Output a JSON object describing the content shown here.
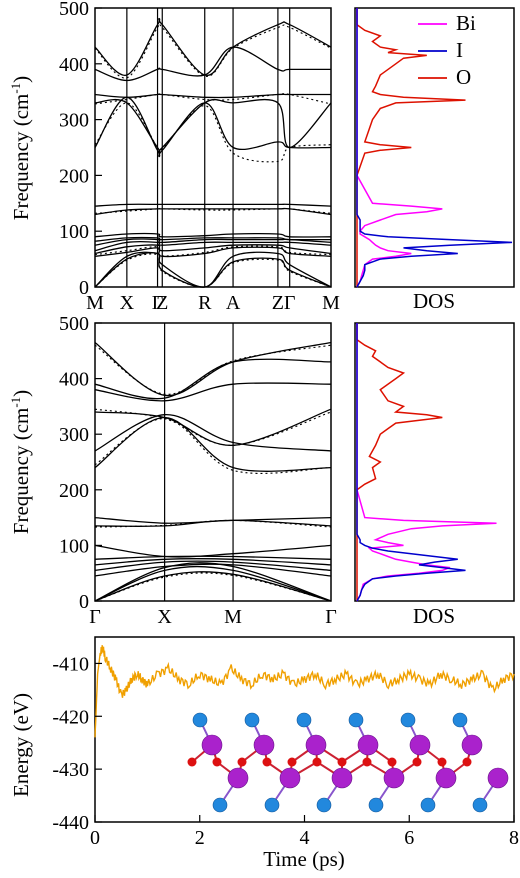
{
  "chart_data": [
    {
      "type": "line",
      "panel": "phonon-dispersion-top",
      "ylabel": "Frequency (cm",
      "ylabel_sup": "-1",
      "ylabel_close": ")",
      "ylim": [
        0,
        500
      ],
      "yticks": [
        "0",
        "100",
        "200",
        "300",
        "400",
        "500"
      ],
      "ytick_values": [
        0,
        100,
        200,
        300,
        400,
        500
      ],
      "path_points": [
        "M",
        "X",
        "Γ",
        "Z",
        "R",
        "A",
        "Z",
        "Γ",
        "M"
      ],
      "x_tick_labels": [
        "M",
        "X",
        "Γ",
        "Z",
        "R",
        "A",
        "Z",
        "Γ",
        "M"
      ],
      "branches": [
        [
          0,
          50,
          60,
          30,
          0,
          45,
          50,
          30,
          0
        ],
        [
          0,
          55,
          60,
          40,
          0,
          55,
          60,
          40,
          0
        ],
        [
          55,
          62,
          70,
          55,
          60,
          70,
          70,
          60,
          55
        ],
        [
          60,
          72,
          75,
          65,
          70,
          75,
          75,
          70,
          60
        ],
        [
          65,
          80,
          80,
          75,
          80,
          80,
          80,
          80,
          75
        ],
        [
          75,
          85,
          85,
          80,
          85,
          85,
          85,
          85,
          80
        ],
        [
          82,
          88,
          88,
          85,
          88,
          88,
          88,
          85,
          85
        ],
        [
          90,
          95,
          95,
          90,
          92,
          95,
          95,
          90,
          90
        ],
        [
          130,
          138,
          140,
          140,
          140,
          140,
          140,
          140,
          130
        ],
        [
          145,
          148,
          148,
          148,
          148,
          148,
          148,
          148,
          145
        ],
        [
          250,
          340,
          245,
          245,
          330,
          250,
          260,
          250,
          250
        ],
        [
          330,
          330,
          250,
          250,
          330,
          330,
          330,
          250,
          330
        ],
        [
          345,
          340,
          345,
          345,
          340,
          340,
          345,
          345,
          345
        ],
        [
          390,
          370,
          390,
          390,
          380,
          430,
          390,
          390,
          390
        ],
        [
          430,
          380,
          470,
          470,
          380,
          430,
          470,
          470,
          430
        ]
      ],
      "branch_dft": [
        [
          0,
          48,
          58,
          28,
          0,
          43,
          48,
          28,
          0
        ],
        [
          58,
          65,
          72,
          56,
          62,
          72,
          72,
          62,
          58
        ],
        [
          132,
          136,
          140,
          140,
          138,
          138,
          140,
          140,
          132
        ],
        [
          255,
          330,
          250,
          248,
          325,
          240,
          225,
          250,
          255
        ],
        [
          328,
          336,
          345,
          345,
          336,
          336,
          345,
          345,
          328
        ],
        [
          428,
          375,
          465,
          465,
          378,
          428,
          465,
          465,
          428
        ]
      ]
    },
    {
      "type": "line",
      "panel": "dos-top",
      "xlabel": "DOS",
      "legend": [
        "Bi",
        "I",
        "O"
      ],
      "colors": {
        "Bi": "#ff00ff",
        "I": "#0000cc",
        "O": "#dd1100"
      },
      "freq": [
        0,
        10,
        20,
        30,
        40,
        50,
        55,
        60,
        65,
        70,
        75,
        80,
        85,
        90,
        95,
        100,
        110,
        120,
        130,
        135,
        140,
        145,
        150,
        200,
        240,
        245,
        250,
        255,
        260,
        300,
        320,
        330,
        335,
        340,
        345,
        350,
        360,
        380,
        400,
        410,
        415,
        420,
        425,
        430,
        440,
        450,
        460,
        470,
        480,
        490,
        500
      ],
      "Bi": [
        0,
        0.02,
        0.03,
        0.04,
        0.05,
        0.1,
        0.25,
        0.35,
        0.2,
        0.15,
        0.12,
        0.1,
        0.08,
        0.05,
        0.02,
        0.02,
        0.05,
        0.15,
        0.25,
        0.45,
        0.55,
        0.35,
        0.1,
        0,
        0,
        0,
        0,
        0,
        0,
        0,
        0,
        0,
        0,
        0,
        0,
        0,
        0,
        0,
        0,
        0,
        0,
        0,
        0,
        0,
        0,
        0,
        0,
        0,
        0,
        0,
        0
      ],
      "I": [
        0,
        0.02,
        0.04,
        0.05,
        0.05,
        0.15,
        0.35,
        0.65,
        0.45,
        0.3,
        0.6,
        1.0,
        0.6,
        0.2,
        0.05,
        0.02,
        0.02,
        0.02,
        0,
        0,
        0,
        0,
        0,
        0,
        0,
        0,
        0,
        0,
        0,
        0,
        0,
        0,
        0,
        0,
        0,
        0,
        0,
        0,
        0,
        0,
        0,
        0,
        0,
        0,
        0,
        0,
        0,
        0,
        0,
        0,
        0
      ],
      "O": [
        0,
        0,
        0,
        0,
        0,
        0,
        0,
        0,
        0,
        0,
        0,
        0,
        0,
        0,
        0,
        0,
        0,
        0,
        0,
        0,
        0,
        0,
        0,
        0,
        0.05,
        0.15,
        0.35,
        0.15,
        0.05,
        0.1,
        0.15,
        0.25,
        0.7,
        0.3,
        0.15,
        0.1,
        0.12,
        0.15,
        0.25,
        0.3,
        0.45,
        0.2,
        0.25,
        0.15,
        0.1,
        0.15,
        0.05,
        0,
        0,
        0,
        0
      ]
    },
    {
      "type": "line",
      "panel": "phonon-dispersion-middle",
      "ylabel": "Frequency (cm",
      "ylabel_sup": "-1",
      "ylabel_close": ")",
      "ylim": [
        0,
        500
      ],
      "yticks": [
        "0",
        "100",
        "200",
        "300",
        "400",
        "500"
      ],
      "ytick_values": [
        0,
        100,
        200,
        300,
        400,
        500
      ],
      "path_points": [
        "Γ",
        "X",
        "M",
        "Γ"
      ],
      "x_tick_labels": [
        "Γ",
        "X",
        "M",
        "Γ"
      ],
      "branches": [
        [
          0,
          45,
          48,
          0
        ],
        [
          0,
          55,
          55,
          0
        ],
        [
          0,
          60,
          62,
          0
        ],
        [
          45,
          62,
          65,
          45
        ],
        [
          55,
          70,
          70,
          55
        ],
        [
          65,
          75,
          75,
          65
        ],
        [
          75,
          80,
          80,
          75
        ],
        [
          100,
          80,
          85,
          100
        ],
        [
          135,
          135,
          145,
          135
        ],
        [
          150,
          140,
          145,
          150
        ],
        [
          240,
          330,
          240,
          240
        ],
        [
          270,
          335,
          285,
          270
        ],
        [
          340,
          330,
          280,
          345
        ],
        [
          380,
          360,
          390,
          390
        ],
        [
          390,
          365,
          430,
          430
        ],
        [
          465,
          370,
          430,
          465
        ]
      ],
      "branch_dft": [
        [
          0,
          43,
          46,
          0
        ],
        [
          133,
          136,
          145,
          133
        ],
        [
          245,
          328,
          235,
          240
        ],
        [
          345,
          328,
          280,
          340
        ],
        [
          460,
          372,
          432,
          460
        ]
      ]
    },
    {
      "type": "line",
      "panel": "dos-middle",
      "xlabel": "DOS",
      "colors": {
        "Bi": "#ff00ff",
        "I": "#0000cc",
        "O": "#dd1100"
      },
      "freq": [
        0,
        10,
        20,
        30,
        40,
        45,
        50,
        55,
        60,
        65,
        70,
        75,
        80,
        85,
        90,
        95,
        100,
        105,
        110,
        120,
        130,
        135,
        140,
        145,
        150,
        200,
        210,
        220,
        240,
        250,
        260,
        280,
        300,
        310,
        320,
        330,
        335,
        340,
        350,
        360,
        380,
        400,
        410,
        420,
        430,
        440,
        450,
        460,
        470,
        480,
        500
      ],
      "Bi": [
        0,
        0.02,
        0.03,
        0.04,
        0.1,
        0.2,
        0.4,
        0.55,
        0.6,
        0.45,
        0.35,
        0.25,
        0.2,
        0.15,
        0.1,
        0.08,
        0.3,
        0.2,
        0.12,
        0.2,
        0.35,
        0.55,
        0.9,
        0.3,
        0.05,
        0,
        0,
        0,
        0,
        0,
        0,
        0,
        0,
        0,
        0,
        0,
        0,
        0,
        0,
        0,
        0,
        0,
        0,
        0,
        0,
        0,
        0,
        0,
        0,
        0,
        0
      ],
      "I": [
        0,
        0.02,
        0.03,
        0.05,
        0.1,
        0.25,
        0.45,
        0.7,
        0.55,
        0.4,
        0.5,
        0.65,
        0.5,
        0.35,
        0.2,
        0.1,
        0.05,
        0.02,
        0.02,
        0,
        0,
        0,
        0,
        0,
        0,
        0,
        0,
        0,
        0,
        0,
        0,
        0,
        0,
        0,
        0,
        0,
        0,
        0,
        0,
        0,
        0,
        0,
        0,
        0,
        0,
        0,
        0,
        0,
        0,
        0,
        0
      ],
      "O": [
        0,
        0,
        0,
        0,
        0,
        0,
        0,
        0,
        0,
        0,
        0,
        0,
        0,
        0,
        0,
        0,
        0,
        0,
        0,
        0,
        0,
        0,
        0,
        0,
        0,
        0,
        0.05,
        0.12,
        0.1,
        0.15,
        0.08,
        0.12,
        0.15,
        0.2,
        0.25,
        0.55,
        0.45,
        0.25,
        0.3,
        0.2,
        0.15,
        0.25,
        0.3,
        0.2,
        0.15,
        0.1,
        0.12,
        0.05,
        0,
        0,
        0
      ]
    },
    {
      "type": "line",
      "panel": "energy-md",
      "xlabel": "Time (ps)",
      "ylabel": "Energy (eV)",
      "xlim": [
        0,
        8
      ],
      "ylim": [
        -440,
        -405
      ],
      "xticks": [
        "0",
        "2",
        "4",
        "6",
        "8"
      ],
      "xtick_values": [
        0,
        2,
        4,
        6,
        8
      ],
      "yticks": [
        "-440",
        "-430",
        "-420",
        "-410"
      ],
      "ytick_values": [
        -440,
        -430,
        -420,
        -410
      ],
      "series": [
        {
          "color": "#f0a000",
          "x": [
            0,
            0.05,
            0.1,
            0.15,
            0.2,
            0.3,
            0.4,
            0.5,
            0.6,
            0.7,
            0.8,
            0.9,
            1.0,
            1.2,
            1.4,
            1.6,
            1.8,
            2.0,
            2.2,
            2.4,
            2.6,
            2.8,
            3.0,
            3.2,
            3.4,
            3.6,
            3.8,
            4.0,
            4.2,
            4.4,
            4.6,
            4.8,
            5.0,
            5.2,
            5.4,
            5.6,
            5.8,
            6.0,
            6.2,
            6.4,
            6.6,
            6.8,
            7.0,
            7.2,
            7.4,
            7.6,
            7.8,
            8.0
          ],
          "y": [
            -424,
            -412,
            -408,
            -407,
            -409,
            -411,
            -413,
            -416,
            -415,
            -413,
            -412,
            -413,
            -414,
            -412,
            -411,
            -413,
            -414,
            -412,
            -413,
            -414,
            -411,
            -413,
            -414,
            -412,
            -413,
            -412,
            -414,
            -413,
            -412,
            -414,
            -413,
            -412,
            -414,
            -413,
            -412,
            -414,
            -413,
            -412,
            -413,
            -414,
            -412,
            -413,
            -414,
            -413,
            -412,
            -415,
            -413,
            -412
          ]
        }
      ]
    }
  ]
}
